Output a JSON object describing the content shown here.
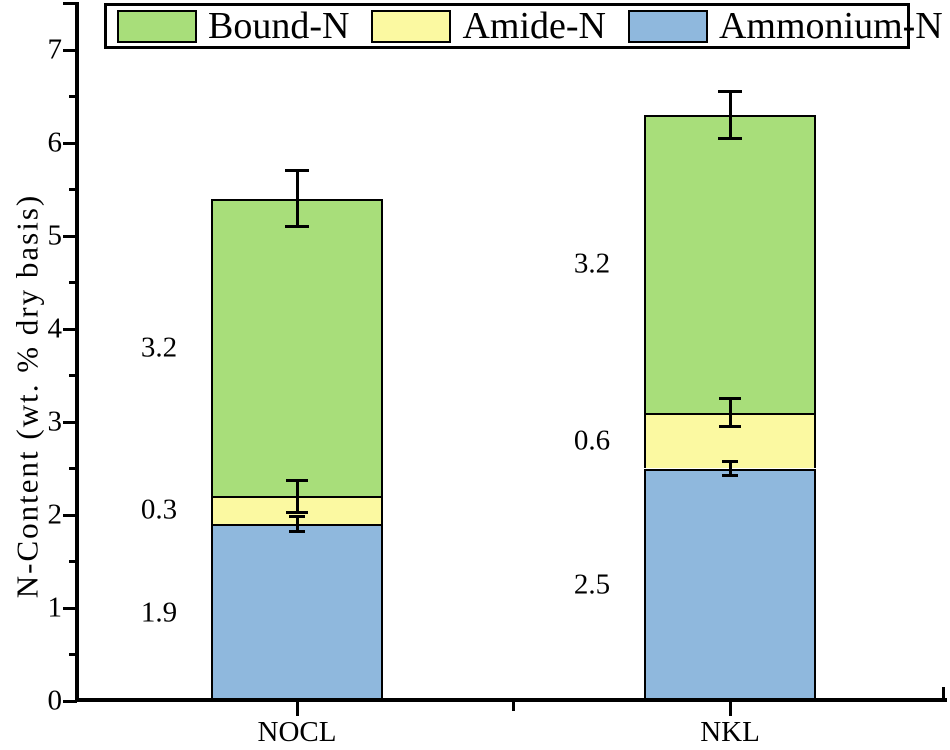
{
  "chart_data": {
    "type": "bar",
    "stacked": true,
    "title": "",
    "xlabel": "",
    "ylabel": "N-Content (wt. % dry basis)",
    "ylim": [
      0,
      7.5
    ],
    "yticks": [
      0,
      1,
      2,
      3,
      4,
      5,
      6,
      7
    ],
    "minor_ytick_step": 0.5,
    "grid": "off",
    "legend_position": "top",
    "categories": [
      "NOCL",
      "NKL"
    ],
    "series": [
      {
        "name": "Ammonium-N",
        "color": "#8FB8DD",
        "values": [
          1.9,
          2.5
        ],
        "errors": [
          0.08,
          0.08
        ]
      },
      {
        "name": "Amide-N",
        "color": "#FBF9A1",
        "values": [
          0.3,
          0.6
        ],
        "errors": [
          0.17,
          0.15
        ]
      },
      {
        "name": "Bound-N",
        "color": "#A8DE7A",
        "values": [
          3.2,
          3.2
        ],
        "errors": [
          0.3,
          0.25
        ]
      }
    ],
    "segment_value_labels": [
      [
        "1.9",
        "0.3",
        "3.2"
      ],
      [
        "2.5",
        "0.6",
        "3.2"
      ]
    ],
    "totals": [
      5.4,
      6.3
    ]
  },
  "legend": {
    "items": [
      {
        "label": "Bound-N",
        "color": "#A8DE7A"
      },
      {
        "label": "Amide-N",
        "color": "#FBF9A1"
      },
      {
        "label": "Ammonium-N",
        "color": "#8FB8DD"
      }
    ]
  },
  "colors": {
    "axis": "#000000",
    "background": "#ffffff"
  }
}
